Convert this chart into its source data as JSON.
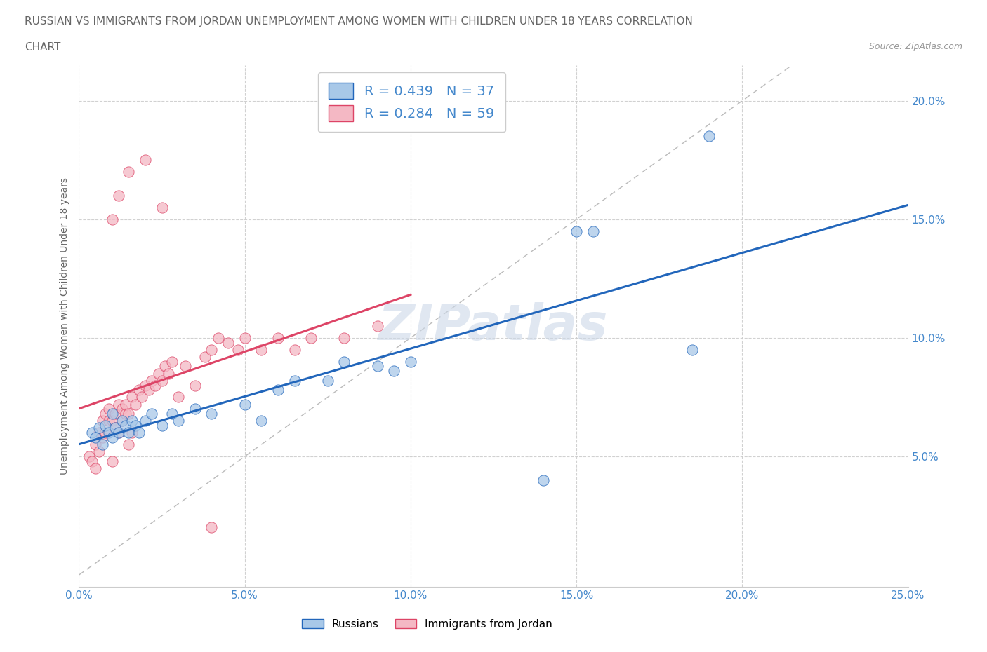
{
  "title_line1": "RUSSIAN VS IMMIGRANTS FROM JORDAN UNEMPLOYMENT AMONG WOMEN WITH CHILDREN UNDER 18 YEARS CORRELATION",
  "title_line2": "CHART",
  "source": "Source: ZipAtlas.com",
  "ylabel": "Unemployment Among Women with Children Under 18 years",
  "xlim": [
    0.0,
    0.25
  ],
  "ylim": [
    -0.005,
    0.215
  ],
  "xticks": [
    0.0,
    0.05,
    0.1,
    0.15,
    0.2,
    0.25
  ],
  "yticks": [
    0.05,
    0.1,
    0.15,
    0.2
  ],
  "xtick_labels": [
    "0.0%",
    "5.0%",
    "10.0%",
    "15.0%",
    "20.0%",
    "25.0%"
  ],
  "ytick_labels": [
    "5.0%",
    "10.0%",
    "15.0%",
    "20.0%"
  ],
  "rus_x": [
    0.004,
    0.005,
    0.006,
    0.007,
    0.008,
    0.009,
    0.01,
    0.01,
    0.011,
    0.012,
    0.013,
    0.014,
    0.015,
    0.016,
    0.017,
    0.018,
    0.02,
    0.022,
    0.025,
    0.028,
    0.03,
    0.035,
    0.04,
    0.05,
    0.055,
    0.06,
    0.065,
    0.075,
    0.08,
    0.09,
    0.095,
    0.1,
    0.14,
    0.15,
    0.155,
    0.185,
    0.19
  ],
  "rus_y": [
    0.06,
    0.058,
    0.062,
    0.055,
    0.063,
    0.06,
    0.058,
    0.068,
    0.062,
    0.06,
    0.065,
    0.063,
    0.06,
    0.065,
    0.063,
    0.06,
    0.065,
    0.068,
    0.063,
    0.068,
    0.065,
    0.07,
    0.068,
    0.072,
    0.065,
    0.078,
    0.082,
    0.082,
    0.09,
    0.088,
    0.086,
    0.09,
    0.04,
    0.145,
    0.145,
    0.095,
    0.185
  ],
  "jor_x": [
    0.003,
    0.004,
    0.005,
    0.005,
    0.006,
    0.006,
    0.007,
    0.007,
    0.008,
    0.008,
    0.009,
    0.009,
    0.01,
    0.01,
    0.011,
    0.011,
    0.012,
    0.012,
    0.013,
    0.013,
    0.014,
    0.014,
    0.015,
    0.015,
    0.016,
    0.016,
    0.017,
    0.018,
    0.019,
    0.02,
    0.021,
    0.022,
    0.023,
    0.024,
    0.025,
    0.026,
    0.027,
    0.028,
    0.03,
    0.032,
    0.035,
    0.038,
    0.04,
    0.042,
    0.045,
    0.048,
    0.05,
    0.055,
    0.06,
    0.065,
    0.07,
    0.08,
    0.09,
    0.01,
    0.012,
    0.015,
    0.02,
    0.025,
    0.04
  ],
  "jor_y": [
    0.05,
    0.048,
    0.045,
    0.055,
    0.052,
    0.06,
    0.058,
    0.065,
    0.06,
    0.068,
    0.065,
    0.07,
    0.048,
    0.065,
    0.062,
    0.068,
    0.06,
    0.072,
    0.065,
    0.07,
    0.068,
    0.072,
    0.055,
    0.068,
    0.06,
    0.075,
    0.072,
    0.078,
    0.075,
    0.08,
    0.078,
    0.082,
    0.08,
    0.085,
    0.082,
    0.088,
    0.085,
    0.09,
    0.075,
    0.088,
    0.08,
    0.092,
    0.095,
    0.1,
    0.098,
    0.095,
    0.1,
    0.095,
    0.1,
    0.095,
    0.1,
    0.1,
    0.105,
    0.15,
    0.16,
    0.17,
    0.175,
    0.155,
    0.02
  ],
  "russian_color": "#a8c8e8",
  "jordan_color": "#f4b8c4",
  "russian_line_color": "#2266bb",
  "jordan_line_color": "#dd4466",
  "R_russian": 0.439,
  "N_russian": 37,
  "R_jordan": 0.284,
  "N_jordan": 59,
  "watermark_text": "ZIPatlas",
  "background_color": "#ffffff"
}
